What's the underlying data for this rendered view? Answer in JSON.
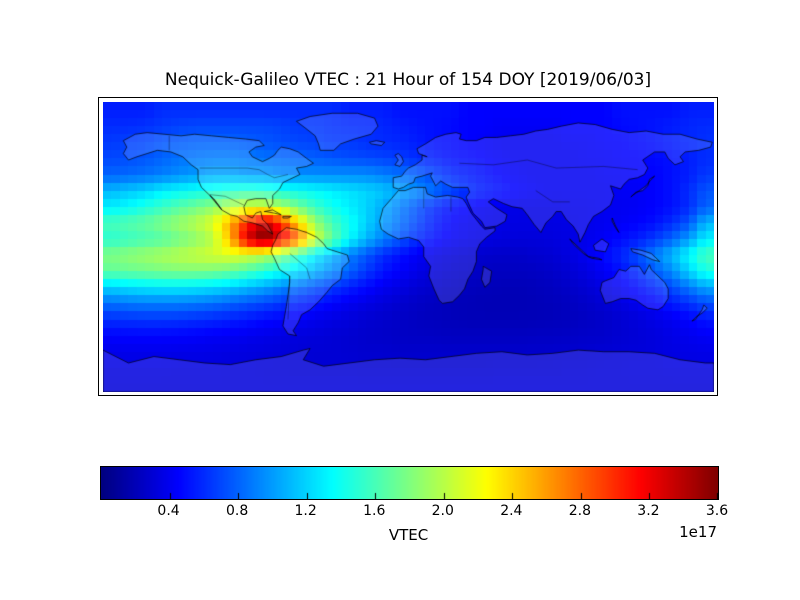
{
  "title": "Nequick-Galileo VTEC : 21 Hour of 154 DOY [2019/06/03]",
  "colorbar": {
    "label": "VTEC",
    "offset_text": "1e17",
    "ticks": [
      "0.4",
      "0.8",
      "1.2",
      "1.6",
      "2.0",
      "2.4",
      "2.8",
      "3.2",
      "3.6"
    ],
    "vmin": 0,
    "vmax": 3.6,
    "colormap": "jet",
    "orientation": "horizontal"
  },
  "chart_data": {
    "type": "heatmap",
    "title": "Nequick-Galileo VTEC : 21 Hour of 154 DOY [2019/06/03]",
    "xlabel": "",
    "ylabel": "",
    "value_label": "VTEC",
    "value_scale_text": "1e17",
    "colormap": "jet",
    "vmin": 0,
    "vmax": 3.6,
    "projection": "equirectangular world map, lon -180..180, lat 90..-90",
    "legend_position": "horizontal colorbar below map",
    "grid": false,
    "lon_centers": [
      -175,
      -165,
      -155,
      -145,
      -135,
      -125,
      -115,
      -105,
      -95,
      -85,
      -75,
      -65,
      -55,
      -45,
      -35,
      -25,
      -15,
      -5,
      5,
      15,
      25,
      35,
      45,
      55,
      65,
      75,
      85,
      95,
      105,
      115,
      125,
      135,
      145,
      155,
      165,
      175
    ],
    "lat_centers": [
      85,
      75,
      65,
      55,
      45,
      35,
      25,
      15,
      5,
      -5,
      -15,
      -25,
      -35,
      -45,
      -55,
      -65,
      -75,
      -85
    ],
    "values_1e17": [
      [
        0.55,
        0.55,
        0.55,
        0.6,
        0.6,
        0.6,
        0.6,
        0.6,
        0.6,
        0.6,
        0.6,
        0.6,
        0.6,
        0.6,
        0.55,
        0.55,
        0.55,
        0.5,
        0.5,
        0.5,
        0.5,
        0.45,
        0.45,
        0.45,
        0.45,
        0.45,
        0.45,
        0.45,
        0.45,
        0.45,
        0.5,
        0.5,
        0.5,
        0.5,
        0.55,
        0.55
      ],
      [
        0.6,
        0.6,
        0.62,
        0.65,
        0.68,
        0.7,
        0.7,
        0.7,
        0.7,
        0.7,
        0.68,
        0.65,
        0.65,
        0.62,
        0.6,
        0.6,
        0.58,
        0.55,
        0.52,
        0.5,
        0.48,
        0.45,
        0.45,
        0.42,
        0.42,
        0.42,
        0.42,
        0.45,
        0.45,
        0.45,
        0.48,
        0.5,
        0.52,
        0.55,
        0.58,
        0.6
      ],
      [
        0.65,
        0.68,
        0.7,
        0.75,
        0.78,
        0.8,
        0.8,
        0.8,
        0.78,
        0.75,
        0.72,
        0.7,
        0.68,
        0.65,
        0.65,
        0.62,
        0.6,
        0.58,
        0.55,
        0.5,
        0.48,
        0.45,
        0.42,
        0.4,
        0.4,
        0.4,
        0.4,
        0.42,
        0.42,
        0.45,
        0.45,
        0.48,
        0.5,
        0.55,
        0.58,
        0.62
      ],
      [
        0.7,
        0.72,
        0.75,
        0.8,
        0.85,
        0.88,
        0.9,
        0.9,
        0.88,
        0.85,
        0.82,
        0.8,
        0.78,
        0.75,
        0.72,
        0.7,
        0.68,
        0.65,
        0.6,
        0.55,
        0.5,
        0.48,
        0.45,
        0.42,
        0.4,
        0.4,
        0.4,
        0.4,
        0.42,
        0.42,
        0.45,
        0.45,
        0.48,
        0.5,
        0.55,
        0.6
      ],
      [
        0.8,
        0.82,
        0.85,
        0.9,
        0.95,
        1.0,
        1.05,
        1.05,
        1.0,
        1.0,
        0.95,
        0.95,
        0.95,
        0.95,
        0.95,
        0.95,
        0.9,
        0.85,
        0.8,
        0.7,
        0.6,
        0.55,
        0.5,
        0.45,
        0.42,
        0.4,
        0.4,
        0.4,
        0.4,
        0.42,
        0.42,
        0.45,
        0.45,
        0.5,
        0.55,
        0.65
      ],
      [
        1.1,
        1.15,
        1.2,
        1.3,
        1.35,
        1.4,
        1.45,
        1.5,
        1.55,
        1.5,
        1.45,
        1.4,
        1.35,
        1.3,
        1.25,
        1.2,
        1.15,
        1.05,
        0.95,
        0.85,
        0.72,
        0.62,
        0.55,
        0.5,
        0.45,
        0.42,
        0.4,
        0.4,
        0.4,
        0.4,
        0.42,
        0.42,
        0.45,
        0.5,
        0.6,
        0.75
      ],
      [
        1.3,
        1.35,
        1.45,
        1.55,
        1.65,
        1.75,
        1.85,
        2.0,
        2.1,
        2.1,
        1.95,
        1.75,
        1.55,
        1.4,
        1.3,
        1.2,
        1.05,
        0.9,
        0.75,
        0.6,
        0.5,
        0.45,
        0.4,
        0.38,
        0.36,
        0.36,
        0.36,
        0.38,
        0.38,
        0.4,
        0.4,
        0.42,
        0.45,
        0.5,
        0.6,
        0.8
      ],
      [
        1.6,
        1.65,
        1.7,
        1.8,
        1.9,
        2.0,
        2.15,
        2.55,
        3.05,
        3.4,
        3.0,
        2.4,
        1.9,
        1.6,
        1.4,
        1.2,
        1.0,
        0.85,
        0.7,
        0.55,
        0.45,
        0.4,
        0.38,
        0.36,
        0.35,
        0.35,
        0.35,
        0.36,
        0.38,
        0.4,
        0.42,
        0.45,
        0.5,
        0.6,
        0.75,
        1.1
      ],
      [
        1.5,
        1.55,
        1.6,
        1.65,
        1.75,
        1.85,
        2.0,
        2.5,
        3.3,
        3.65,
        3.25,
        2.8,
        2.1,
        1.7,
        1.35,
        1.1,
        0.9,
        0.75,
        0.6,
        0.5,
        0.42,
        0.38,
        0.35,
        0.33,
        0.32,
        0.32,
        0.33,
        0.35,
        0.38,
        0.42,
        0.48,
        0.55,
        0.65,
        0.8,
        1.0,
        1.3
      ],
      [
        1.8,
        1.85,
        1.9,
        1.95,
        2.0,
        2.05,
        2.1,
        2.15,
        2.1,
        2.0,
        1.8,
        1.55,
        1.3,
        1.1,
        0.9,
        0.75,
        0.6,
        0.5,
        0.42,
        0.36,
        0.32,
        0.29,
        0.27,
        0.26,
        0.26,
        0.28,
        0.3,
        0.34,
        0.4,
        0.48,
        0.58,
        0.72,
        0.9,
        1.1,
        1.35,
        1.6
      ],
      [
        1.7,
        1.72,
        1.75,
        1.78,
        1.8,
        1.8,
        1.78,
        1.72,
        1.62,
        1.5,
        1.38,
        1.25,
        1.1,
        0.95,
        0.8,
        0.65,
        0.52,
        0.44,
        0.37,
        0.32,
        0.28,
        0.26,
        0.24,
        0.23,
        0.23,
        0.24,
        0.26,
        0.3,
        0.35,
        0.42,
        0.5,
        0.62,
        0.78,
        0.95,
        1.2,
        1.45
      ],
      [
        1.2,
        1.25,
        1.28,
        1.3,
        1.3,
        1.28,
        1.25,
        1.2,
        1.12,
        1.05,
        0.95,
        0.85,
        0.75,
        0.65,
        0.56,
        0.48,
        0.4,
        0.35,
        0.3,
        0.27,
        0.24,
        0.22,
        0.21,
        0.2,
        0.2,
        0.21,
        0.23,
        0.26,
        0.3,
        0.35,
        0.42,
        0.5,
        0.6,
        0.72,
        0.88,
        1.05
      ],
      [
        0.85,
        0.88,
        0.9,
        0.9,
        0.9,
        0.88,
        0.85,
        0.8,
        0.75,
        0.7,
        0.64,
        0.58,
        0.52,
        0.46,
        0.4,
        0.36,
        0.32,
        0.28,
        0.25,
        0.23,
        0.21,
        0.2,
        0.19,
        0.19,
        0.19,
        0.2,
        0.21,
        0.23,
        0.26,
        0.3,
        0.34,
        0.4,
        0.46,
        0.54,
        0.62,
        0.73
      ],
      [
        0.6,
        0.62,
        0.63,
        0.63,
        0.62,
        0.6,
        0.58,
        0.55,
        0.52,
        0.48,
        0.45,
        0.42,
        0.38,
        0.35,
        0.32,
        0.29,
        0.27,
        0.25,
        0.23,
        0.22,
        0.21,
        0.2,
        0.2,
        0.2,
        0.2,
        0.2,
        0.21,
        0.22,
        0.24,
        0.26,
        0.29,
        0.32,
        0.36,
        0.4,
        0.45,
        0.52
      ],
      [
        0.45,
        0.46,
        0.46,
        0.46,
        0.45,
        0.44,
        0.42,
        0.41,
        0.39,
        0.37,
        0.35,
        0.33,
        0.32,
        0.3,
        0.29,
        0.27,
        0.26,
        0.25,
        0.24,
        0.24,
        0.23,
        0.23,
        0.23,
        0.23,
        0.23,
        0.24,
        0.24,
        0.25,
        0.26,
        0.27,
        0.29,
        0.31,
        0.33,
        0.36,
        0.39,
        0.42
      ],
      [
        0.38,
        0.38,
        0.38,
        0.38,
        0.37,
        0.37,
        0.36,
        0.35,
        0.34,
        0.33,
        0.32,
        0.31,
        0.3,
        0.3,
        0.29,
        0.28,
        0.28,
        0.27,
        0.27,
        0.27,
        0.27,
        0.27,
        0.27,
        0.27,
        0.27,
        0.27,
        0.28,
        0.28,
        0.29,
        0.3,
        0.31,
        0.32,
        0.33,
        0.35,
        0.36,
        0.37
      ],
      [
        0.34,
        0.34,
        0.34,
        0.34,
        0.33,
        0.33,
        0.33,
        0.32,
        0.32,
        0.31,
        0.31,
        0.3,
        0.3,
        0.3,
        0.3,
        0.29,
        0.29,
        0.29,
        0.29,
        0.29,
        0.29,
        0.29,
        0.29,
        0.3,
        0.3,
        0.3,
        0.3,
        0.31,
        0.31,
        0.32,
        0.32,
        0.33,
        0.33,
        0.34,
        0.34,
        0.34
      ],
      [
        0.32,
        0.32,
        0.32,
        0.32,
        0.32,
        0.32,
        0.32,
        0.32,
        0.32,
        0.32,
        0.32,
        0.32,
        0.32,
        0.32,
        0.32,
        0.32,
        0.32,
        0.32,
        0.32,
        0.32,
        0.32,
        0.32,
        0.32,
        0.32,
        0.32,
        0.32,
        0.32,
        0.32,
        0.32,
        0.32,
        0.32,
        0.32,
        0.32,
        0.32,
        0.32,
        0.32
      ]
    ]
  }
}
